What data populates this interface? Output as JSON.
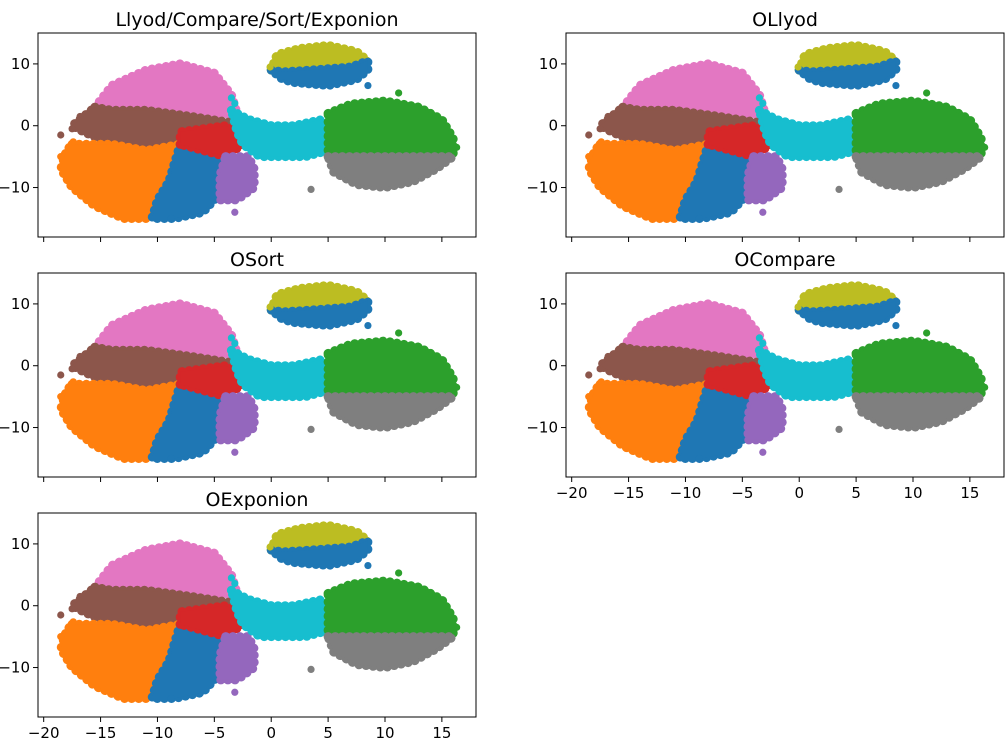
{
  "chart_data": [
    {
      "type": "scatter",
      "title": "Llyod/Compare/Sort/Exponion",
      "xlim": [
        -20.5,
        18
      ],
      "ylim": [
        -18,
        15
      ],
      "yticks": [
        10,
        0,
        -10
      ],
      "xticks": [
        -20,
        -15,
        -10,
        -5,
        0,
        5,
        10,
        15
      ],
      "show_xticklabels": false
    },
    {
      "type": "scatter",
      "title": "OLlyod",
      "xlim": [
        -20.5,
        18
      ],
      "ylim": [
        -18,
        15
      ],
      "yticks": [
        10,
        0,
        -10
      ],
      "xticks": [
        -20,
        -15,
        -10,
        -5,
        0,
        5,
        10,
        15
      ],
      "show_xticklabels": false
    },
    {
      "type": "scatter",
      "title": "OSort",
      "xlim": [
        -20.5,
        18
      ],
      "ylim": [
        -18,
        15
      ],
      "yticks": [
        10,
        0,
        -10
      ],
      "xticks": [
        -20,
        -15,
        -10,
        -5,
        0,
        5,
        10,
        15
      ],
      "show_xticklabels": false
    },
    {
      "type": "scatter",
      "title": "OCompare",
      "xlim": [
        -20.5,
        18
      ],
      "ylim": [
        -18,
        15
      ],
      "yticks": [
        10,
        0,
        -10
      ],
      "xticks": [
        -20,
        -15,
        -10,
        -5,
        0,
        5,
        10,
        15
      ],
      "show_xticklabels": true
    },
    {
      "type": "scatter",
      "title": "OExponion",
      "xlim": [
        -20.5,
        18
      ],
      "ylim": [
        -18,
        15
      ],
      "yticks": [
        10,
        0,
        -10
      ],
      "xticks": [
        -20,
        -15,
        -10,
        -5,
        0,
        5,
        10,
        15
      ],
      "show_xticklabels": true
    }
  ],
  "clusters": [
    {
      "color": "#e377c2",
      "polygon": [
        [
          -15.5,
          3
        ],
        [
          -14,
          6.5
        ],
        [
          -11,
          9
        ],
        [
          -8,
          10
        ],
        [
          -5,
          8.5
        ],
        [
          -3.5,
          5
        ],
        [
          -3,
          2
        ],
        [
          -7,
          1.5
        ],
        [
          -11,
          2.5
        ],
        [
          -14,
          2.5
        ]
      ]
    },
    {
      "color": "#8c564b",
      "polygon": [
        [
          -15.5,
          3
        ],
        [
          -14,
          2.5
        ],
        [
          -11,
          2.5
        ],
        [
          -7,
          1.5
        ],
        [
          -3.5,
          0.5
        ],
        [
          -4,
          -1
        ],
        [
          -6,
          -2
        ],
        [
          -8,
          -3
        ],
        [
          -11,
          -4
        ],
        [
          -14,
          -3
        ],
        [
          -16.5,
          -1
        ],
        [
          -17.5,
          0
        ]
      ]
    },
    {
      "color": "#ff7f0e",
      "polygon": [
        [
          -17.5,
          -3
        ],
        [
          -14,
          -3
        ],
        [
          -11,
          -4
        ],
        [
          -8,
          -3
        ],
        [
          -8.5,
          -6
        ],
        [
          -9,
          -9
        ],
        [
          -10,
          -12
        ],
        [
          -11,
          -15
        ],
        [
          -13,
          -15
        ],
        [
          -15.5,
          -13
        ],
        [
          -17.5,
          -10
        ],
        [
          -18.5,
          -7
        ],
        [
          -18,
          -4
        ]
      ]
    },
    {
      "color": "#1f77b4",
      "polygon": [
        [
          -8,
          -3
        ],
        [
          -6,
          -4
        ],
        [
          -4,
          -5
        ],
        [
          -4.3,
          -8
        ],
        [
          -4.5,
          -11
        ],
        [
          -6,
          -14
        ],
        [
          -8.5,
          -15
        ],
        [
          -10.5,
          -15
        ],
        [
          -10,
          -12
        ],
        [
          -9,
          -9
        ],
        [
          -8.5,
          -6
        ]
      ]
    },
    {
      "color": "#d62728",
      "polygon": [
        [
          -8,
          -3
        ],
        [
          -8,
          -1
        ],
        [
          -6,
          -0.5
        ],
        [
          -4,
          0
        ],
        [
          -3,
          -1
        ],
        [
          -2.5,
          -3
        ],
        [
          -4,
          -5
        ],
        [
          -6,
          -4
        ]
      ]
    },
    {
      "color": "#9467bd",
      "polygon": [
        [
          -4,
          -5
        ],
        [
          -2,
          -5
        ],
        [
          -1.5,
          -7
        ],
        [
          -1.5,
          -10
        ],
        [
          -3,
          -12
        ],
        [
          -4.5,
          -12
        ],
        [
          -4.5,
          -8
        ]
      ]
    },
    {
      "color": "#17becf",
      "polygon": [
        [
          -3.5,
          2.5
        ],
        [
          -2,
          1
        ],
        [
          0,
          0
        ],
        [
          2,
          0
        ],
        [
          4.5,
          1
        ],
        [
          5,
          -1
        ],
        [
          5,
          -4
        ],
        [
          3,
          -5
        ],
        [
          1,
          -5
        ],
        [
          -1,
          -5
        ],
        [
          -2.5,
          -3
        ],
        [
          -3,
          -1
        ]
      ]
    },
    {
      "color": "#2ca02c",
      "polygon": [
        [
          5,
          2
        ],
        [
          7,
          3.5
        ],
        [
          10,
          4
        ],
        [
          13,
          3
        ],
        [
          15,
          1
        ],
        [
          16,
          -2
        ],
        [
          16,
          -5
        ],
        [
          5,
          -5
        ]
      ]
    },
    {
      "color": "#7f7f7f",
      "polygon": [
        [
          5,
          -5
        ],
        [
          16,
          -5
        ],
        [
          14.5,
          -7
        ],
        [
          12.5,
          -9
        ],
        [
          10,
          -10
        ],
        [
          7.5,
          -9.5
        ],
        [
          5.5,
          -7.5
        ]
      ]
    },
    {
      "color": "#bcbd22",
      "polygon": [
        [
          0,
          9
        ],
        [
          0.5,
          11.5
        ],
        [
          2.5,
          12.5
        ],
        [
          5,
          13
        ],
        [
          7.5,
          12
        ],
        [
          8.5,
          10.5
        ],
        [
          7,
          9.5
        ],
        [
          3.5,
          9
        ],
        [
          1,
          8.7
        ]
      ]
    },
    {
      "color": "#1f77b4",
      "polygon": [
        [
          0,
          9
        ],
        [
          1,
          8.7
        ],
        [
          3.5,
          9
        ],
        [
          7,
          9.5
        ],
        [
          8.5,
          10.5
        ],
        [
          8.5,
          9
        ],
        [
          7.5,
          7.5
        ],
        [
          5,
          6.5
        ],
        [
          2,
          7
        ],
        [
          1,
          7.5
        ]
      ]
    }
  ],
  "outliers": [
    {
      "x": -18.5,
      "y": -1.5,
      "c": "#8c564b"
    },
    {
      "x": -17.5,
      "y": -0.5,
      "c": "#8c564b"
    },
    {
      "x": -18.5,
      "y": -5,
      "c": "#ff7f0e"
    },
    {
      "x": -16.8,
      "y": 1.5,
      "c": "#8c564b"
    },
    {
      "x": 3.5,
      "y": -10.3,
      "c": "#7f7f7f"
    },
    {
      "x": 11.2,
      "y": 5.3,
      "c": "#2ca02c"
    },
    {
      "x": 16.3,
      "y": -3.5,
      "c": "#2ca02c"
    },
    {
      "x": -3.2,
      "y": -14,
      "c": "#9467bd"
    },
    {
      "x": -3.5,
      "y": 4.5,
      "c": "#17becf"
    },
    {
      "x": -3.2,
      "y": 3.6,
      "c": "#17becf"
    },
    {
      "x": -0.1,
      "y": 9.5,
      "c": "#bcbd22"
    },
    {
      "x": 8.5,
      "y": 6.5,
      "c": "#1f77b4"
    },
    {
      "x": -17.4,
      "y": -2.6,
      "c": "#ff7f0e"
    },
    {
      "x": -8.8,
      "y": -15,
      "c": "#1f77b4"
    }
  ]
}
